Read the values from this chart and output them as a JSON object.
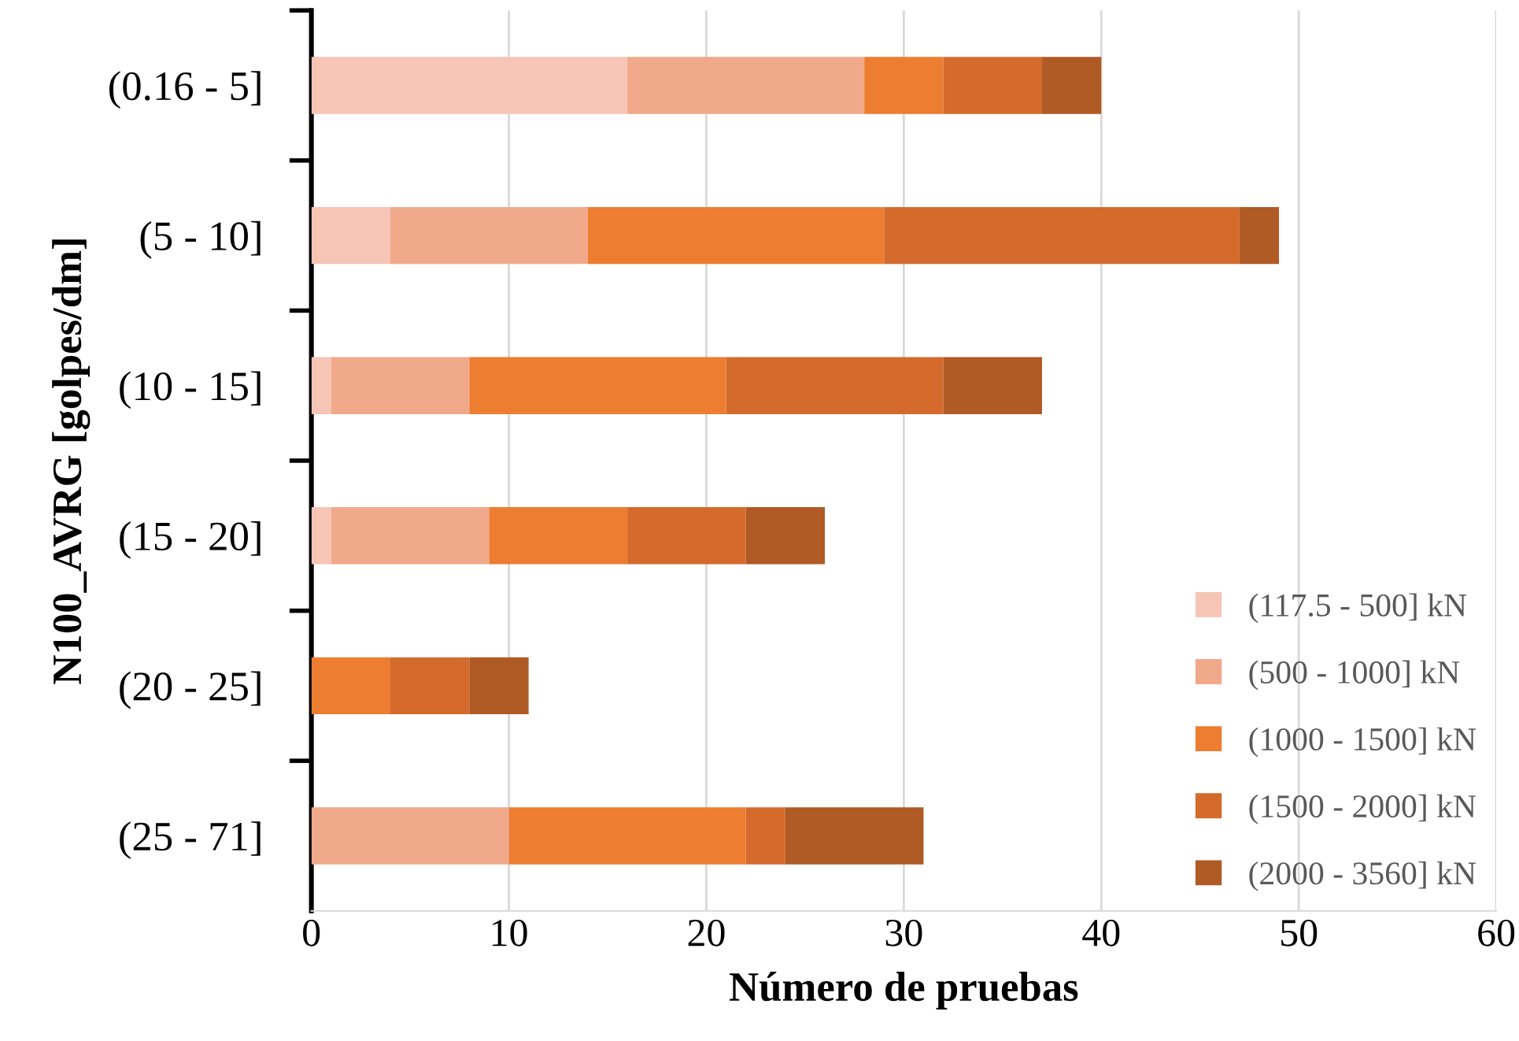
{
  "chart_data": {
    "type": "bar",
    "orientation": "horizontal",
    "stacked": true,
    "xlabel": "Número de pruebas",
    "ylabel": "N100_AVRG [golpes/dm]",
    "categories": [
      "(0.16 - 5]",
      "(5 - 10]",
      "(10 - 15]",
      "(15 - 20]",
      "(20 - 25]",
      "(25 - 71]"
    ],
    "series": [
      {
        "name": "(117.5 - 500] kN",
        "color": "#f6c5b5",
        "values": [
          16,
          4,
          1,
          1,
          0,
          0
        ]
      },
      {
        "name": "(500 - 1000] kN",
        "color": "#f0a98a",
        "values": [
          12,
          10,
          7,
          8,
          0,
          10
        ]
      },
      {
        "name": "(1000 - 1500] kN",
        "color": "#ed7d31",
        "values": [
          4,
          15,
          13,
          7,
          4,
          12
        ]
      },
      {
        "name": "(1500 - 2000] kN",
        "color": "#d46b2c",
        "values": [
          5,
          18,
          11,
          6,
          4,
          2
        ]
      },
      {
        "name": "(2000 - 3560] kN",
        "color": "#b05a25",
        "values": [
          3,
          2,
          5,
          4,
          3,
          7
        ]
      }
    ],
    "xlim": [
      0,
      60
    ],
    "xticks": [
      0,
      10,
      20,
      30,
      40,
      50,
      60
    ],
    "grid": "x",
    "legend": "bottom right"
  }
}
